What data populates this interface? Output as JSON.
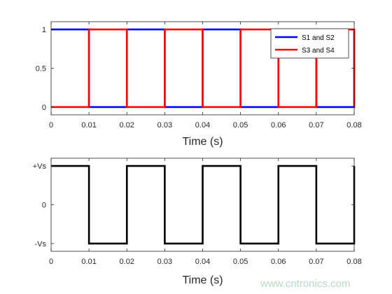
{
  "watermark": "www.cntronics.com",
  "chart_data": [
    {
      "type": "line",
      "xlabel": "Time (s)",
      "ylabel": "",
      "xlim": [
        0,
        0.08
      ],
      "ylim": [
        -0.1,
        1.1
      ],
      "x_ticks": [
        0,
        0.01,
        0.02,
        0.03,
        0.04,
        0.05,
        0.06,
        0.07,
        0.08
      ],
      "x_tick_labels": [
        "0",
        "0.01",
        "0.02",
        "0.03",
        "0.04",
        "0.05",
        "0.06",
        "0.07",
        "0.08"
      ],
      "y_ticks": [
        0,
        0.5,
        1
      ],
      "y_tick_labels": [
        "0",
        "0.5",
        "1"
      ],
      "grid": false,
      "legend_position": "top-right",
      "series": [
        {
          "name": "S1 and S2",
          "color": "#0000ff",
          "step": true,
          "x": [
            0,
            0.01,
            0.02,
            0.03,
            0.04,
            0.05,
            0.06,
            0.07,
            0.08
          ],
          "y": [
            1,
            0,
            1,
            0,
            1,
            0,
            1,
            0,
            1
          ]
        },
        {
          "name": "S3 and S4",
          "color": "#ff0000",
          "step": true,
          "x": [
            0,
            0.01,
            0.02,
            0.03,
            0.04,
            0.05,
            0.06,
            0.07,
            0.08
          ],
          "y": [
            0,
            1,
            0,
            1,
            0,
            1,
            0,
            1,
            0
          ]
        }
      ]
    },
    {
      "type": "line",
      "xlabel": "Time (s)",
      "ylabel": "",
      "xlim": [
        0,
        0.08
      ],
      "ylim": [
        -1.2,
        1.2
      ],
      "x_ticks": [
        0,
        0.01,
        0.02,
        0.03,
        0.04,
        0.05,
        0.06,
        0.07,
        0.08
      ],
      "x_tick_labels": [
        "0",
        "0.01",
        "0.02",
        "0.03",
        "0.04",
        "0.05",
        "0.06",
        "0.07",
        "0.08"
      ],
      "y_ticks": [
        -1,
        0,
        1
      ],
      "y_tick_labels": [
        "-Vs",
        "0",
        "+Vs"
      ],
      "grid": false,
      "series": [
        {
          "color": "#000000",
          "step": true,
          "x": [
            0,
            0.01,
            0.02,
            0.03,
            0.04,
            0.05,
            0.06,
            0.07,
            0.08
          ],
          "y": [
            1,
            -1,
            1,
            -1,
            1,
            -1,
            1,
            -1,
            1
          ]
        }
      ]
    }
  ]
}
